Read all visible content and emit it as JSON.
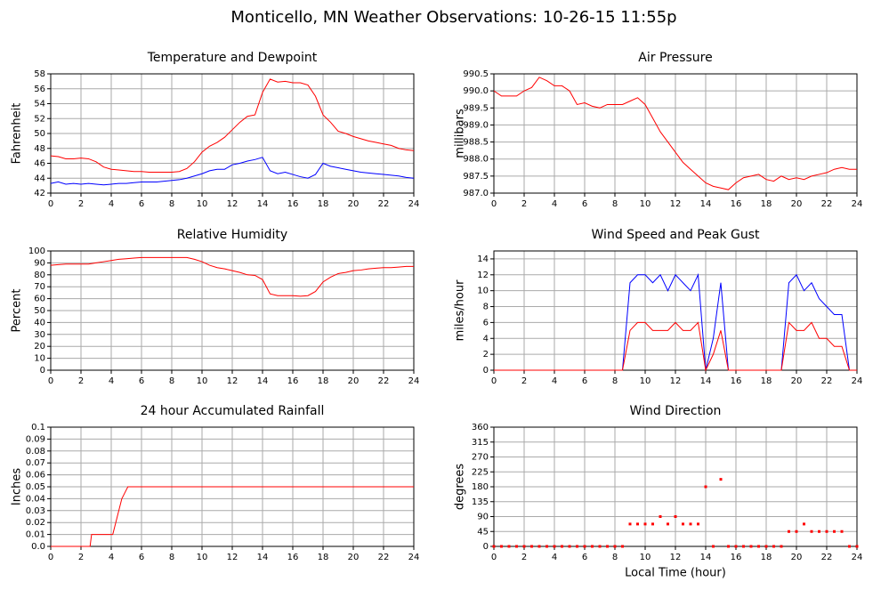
{
  "title": "Monticello, MN Weather Observations: 10-26-15 11:55p",
  "chart_data": [
    {
      "type": "line",
      "title": "Temperature and Dewpoint",
      "y_label": "Fahrenheit",
      "x": [
        0,
        0.5,
        1,
        1.5,
        2,
        2.5,
        3,
        3.5,
        4,
        4.5,
        5,
        5.5,
        6,
        6.5,
        7,
        7.5,
        8,
        8.5,
        9,
        9.5,
        10,
        10.5,
        11,
        11.5,
        12,
        12.5,
        13,
        13.5,
        14,
        14.5,
        15,
        15.5,
        16,
        16.5,
        17,
        17.5,
        18,
        18.5,
        19,
        19.5,
        20,
        20.5,
        21,
        21.5,
        22,
        22.5,
        23,
        23.5,
        24
      ],
      "series": [
        {
          "color": "#ff0000",
          "values": [
            47,
            46.9,
            46.6,
            46.6,
            46.7,
            46.6,
            46.2,
            45.5,
            45.2,
            45.1,
            45,
            44.9,
            44.9,
            44.8,
            44.8,
            44.8,
            44.8,
            44.9,
            45.3,
            46.2,
            47.5,
            48.3,
            48.8,
            49.5,
            50.5,
            51.5,
            52.3,
            52.5,
            55.5,
            57.3,
            56.9,
            57,
            56.8,
            56.8,
            56.5,
            55,
            52.5,
            51.5,
            50.3,
            50,
            49.6,
            49.3,
            49,
            48.8,
            48.6,
            48.4,
            48,
            47.8,
            47.7
          ]
        },
        {
          "color": "#0000ff",
          "values": [
            43.3,
            43.5,
            43.2,
            43.3,
            43.2,
            43.3,
            43.2,
            43.1,
            43.2,
            43.3,
            43.3,
            43.4,
            43.5,
            43.5,
            43.5,
            43.6,
            43.7,
            43.8,
            44,
            44.3,
            44.6,
            45,
            45.2,
            45.2,
            45.8,
            46,
            46.3,
            46.5,
            46.8,
            45,
            44.6,
            44.8,
            44.5,
            44.2,
            44,
            44.5,
            46,
            45.6,
            45.4,
            45.2,
            45,
            44.8,
            44.7,
            44.6,
            44.5,
            44.4,
            44.3,
            44.1,
            44
          ]
        }
      ],
      "xlim": [
        0,
        24
      ],
      "xticks": [
        0,
        2,
        4,
        6,
        8,
        10,
        12,
        14,
        16,
        18,
        20,
        22,
        24
      ],
      "ylim": [
        42,
        58
      ],
      "yticks": [
        42,
        44,
        46,
        48,
        50,
        52,
        54,
        56,
        58
      ],
      "grid": true
    },
    {
      "type": "line",
      "title": "Air Pressure",
      "y_label": "millibars",
      "x": [
        0,
        0.5,
        1,
        1.5,
        2,
        2.5,
        3,
        3.5,
        4,
        4.5,
        5,
        5.5,
        6,
        6.5,
        7,
        7.5,
        8,
        8.5,
        9,
        9.5,
        10,
        10.5,
        11,
        11.5,
        12,
        12.5,
        13,
        13.5,
        14,
        14.5,
        15,
        15.5,
        16,
        16.5,
        17,
        17.5,
        18,
        18.5,
        19,
        19.5,
        20,
        20.5,
        21,
        21.5,
        22,
        22.5,
        23,
        23.5,
        24
      ],
      "series": [
        {
          "color": "#ff0000",
          "values": [
            990,
            989.85,
            989.85,
            989.85,
            990,
            990.1,
            990.4,
            990.3,
            990.15,
            990.15,
            990,
            989.6,
            989.65,
            989.55,
            989.5,
            989.6,
            989.6,
            989.6,
            989.7,
            989.8,
            989.6,
            989.2,
            988.8,
            988.5,
            988.2,
            987.9,
            987.7,
            987.5,
            987.3,
            987.2,
            987.15,
            987.1,
            987.3,
            987.45,
            987.5,
            987.55,
            987.4,
            987.35,
            987.5,
            987.4,
            987.45,
            987.4,
            987.5,
            987.55,
            987.6,
            987.7,
            987.75,
            987.7,
            987.7
          ]
        }
      ],
      "xlim": [
        0,
        24
      ],
      "xticks": [
        0,
        2,
        4,
        6,
        8,
        10,
        12,
        14,
        16,
        18,
        20,
        22,
        24
      ],
      "ylim": [
        987,
        990.5
      ],
      "yticks": [
        {
          "value": 987,
          "label": "987.0"
        },
        987.5,
        {
          "value": 988,
          "label": "988.0"
        },
        988.5,
        {
          "value": 989,
          "label": "989.0"
        },
        989.5,
        {
          "value": 990,
          "label": "990.0"
        },
        990.5
      ],
      "grid": true
    },
    {
      "type": "line",
      "title": "Relative Humidity",
      "y_label": "Percent",
      "x": [
        0,
        0.5,
        1,
        1.5,
        2,
        2.5,
        3,
        3.5,
        4,
        4.5,
        5,
        5.5,
        6,
        6.5,
        7,
        7.5,
        8,
        8.5,
        9,
        9.5,
        10,
        10.5,
        11,
        11.5,
        12,
        12.5,
        13,
        13.5,
        14,
        14.5,
        15,
        15.5,
        16,
        16.5,
        17,
        17.5,
        18,
        18.5,
        19,
        19.5,
        20,
        20.5,
        21,
        21.5,
        22,
        22.5,
        23,
        23.5,
        24
      ],
      "series": [
        {
          "color": "#ff0000",
          "values": [
            88,
            88.5,
            89,
            89,
            89,
            89,
            90,
            91,
            92,
            93,
            93.5,
            94,
            94.5,
            94.5,
            94.5,
            94.5,
            94.5,
            94.5,
            94.5,
            93,
            91,
            88,
            86,
            85,
            83.5,
            82,
            80,
            79.5,
            76,
            64,
            62.5,
            62.5,
            62.5,
            62,
            62.5,
            66,
            74,
            78,
            81,
            82,
            83.5,
            84,
            85,
            85.5,
            86,
            86,
            86.5,
            87,
            87
          ]
        }
      ],
      "xlim": [
        0,
        24
      ],
      "xticks": [
        0,
        2,
        4,
        6,
        8,
        10,
        12,
        14,
        16,
        18,
        20,
        22,
        24
      ],
      "ylim": [
        0,
        100
      ],
      "yticks": [
        0,
        10,
        20,
        30,
        40,
        50,
        60,
        70,
        80,
        90,
        100
      ],
      "grid": true
    },
    {
      "type": "line",
      "title": "Wind Speed and Peak Gust",
      "y_label": "miles/hour",
      "x": [
        0,
        0.5,
        1,
        1.5,
        2,
        2.5,
        3,
        3.5,
        4,
        4.5,
        5,
        5.5,
        6,
        6.5,
        7,
        7.5,
        8,
        8.5,
        9,
        9.5,
        10,
        10.5,
        11,
        11.5,
        12,
        12.5,
        13,
        13.5,
        14,
        14.5,
        15,
        15.5,
        16,
        16.5,
        17,
        17.5,
        18,
        18.5,
        19,
        19.5,
        20,
        20.5,
        21,
        21.5,
        22,
        22.5,
        23,
        23.5,
        24
      ],
      "series": [
        {
          "color": "#0000ff",
          "values": [
            0,
            0,
            0,
            0,
            0,
            0,
            0,
            0,
            0,
            0,
            0,
            0,
            0,
            0,
            0,
            0,
            0,
            0,
            11,
            12,
            12,
            11,
            12,
            10,
            12,
            11,
            10,
            12,
            0,
            4,
            11,
            0,
            0,
            0,
            0,
            0,
            0,
            0,
            0,
            11,
            12,
            10,
            11,
            9,
            8,
            7,
            7,
            0,
            0
          ]
        },
        {
          "color": "#ff0000",
          "values": [
            0,
            0,
            0,
            0,
            0,
            0,
            0,
            0,
            0,
            0,
            0,
            0,
            0,
            0,
            0,
            0,
            0,
            0,
            5,
            6,
            6,
            5,
            5,
            5,
            6,
            5,
            5,
            6,
            0,
            2,
            5,
            0,
            0,
            0,
            0,
            0,
            0,
            0,
            0,
            6,
            5,
            5,
            6,
            4,
            4,
            3,
            3,
            0,
            0
          ]
        }
      ],
      "xlim": [
        0,
        24
      ],
      "xticks": [
        0,
        2,
        4,
        6,
        8,
        10,
        12,
        14,
        16,
        18,
        20,
        22,
        24
      ],
      "ylim": [
        0,
        15
      ],
      "yticks": [
        0,
        2,
        4,
        6,
        8,
        10,
        12,
        14
      ],
      "grid": true
    },
    {
      "type": "line",
      "title": "24 hour Accumulated Rainfall",
      "y_label": "Inches",
      "x": [
        0,
        2.6,
        2.7,
        4.1,
        4.3,
        4.5,
        4.7,
        4.9,
        5.1,
        24
      ],
      "series": [
        {
          "color": "#ff0000",
          "values": [
            0,
            0,
            0.01,
            0.01,
            0.02,
            0.03,
            0.04,
            0.045,
            0.05,
            0.05
          ]
        }
      ],
      "xlim": [
        0,
        24
      ],
      "xticks": [
        0,
        2,
        4,
        6,
        8,
        10,
        12,
        14,
        16,
        18,
        20,
        22,
        24
      ],
      "ylim": [
        0,
        0.1
      ],
      "yticks": [
        {
          "value": 0,
          "label": "0.0"
        },
        0.01,
        0.02,
        0.03,
        0.04,
        0.05,
        0.06,
        0.07,
        0.08,
        0.09,
        0.1
      ],
      "grid": true
    },
    {
      "type": "scatter",
      "title": "Wind Direction",
      "y_label": "degrees",
      "x_label": "Local Time (hour)",
      "x": [
        0,
        0.5,
        1,
        1.5,
        2,
        2.5,
        3,
        3.5,
        4,
        4.5,
        5,
        5.5,
        6,
        6.5,
        7,
        7.5,
        8,
        8.5,
        9,
        9.5,
        10,
        10.5,
        11,
        11.5,
        12,
        12.5,
        13,
        13.5,
        14,
        14.5,
        15,
        15.5,
        16,
        16.5,
        17,
        17.5,
        18,
        18.5,
        19,
        19.5,
        20,
        20.5,
        21,
        21.5,
        22,
        22.5,
        23,
        23.5,
        24
      ],
      "series": [
        {
          "color": "#ff0000",
          "values": [
            0,
            0,
            0,
            0,
            0,
            0,
            0,
            0,
            0,
            0,
            0,
            0,
            0,
            0,
            0,
            0,
            0,
            0,
            67.5,
            67.5,
            67.5,
            67.5,
            90,
            67.5,
            90,
            67.5,
            67.5,
            67.5,
            180,
            0,
            202.5,
            0,
            0,
            0,
            0,
            0,
            0,
            0,
            0,
            45,
            45,
            67.5,
            45,
            45,
            45,
            45,
            45,
            0,
            0
          ]
        }
      ],
      "xlim": [
        0,
        24
      ],
      "xticks": [
        0,
        2,
        4,
        6,
        8,
        10,
        12,
        14,
        16,
        18,
        20,
        22,
        24
      ],
      "ylim": [
        0,
        360
      ],
      "yticks": [
        0,
        45,
        90,
        135,
        180,
        225,
        270,
        315,
        360
      ],
      "grid": true
    }
  ]
}
